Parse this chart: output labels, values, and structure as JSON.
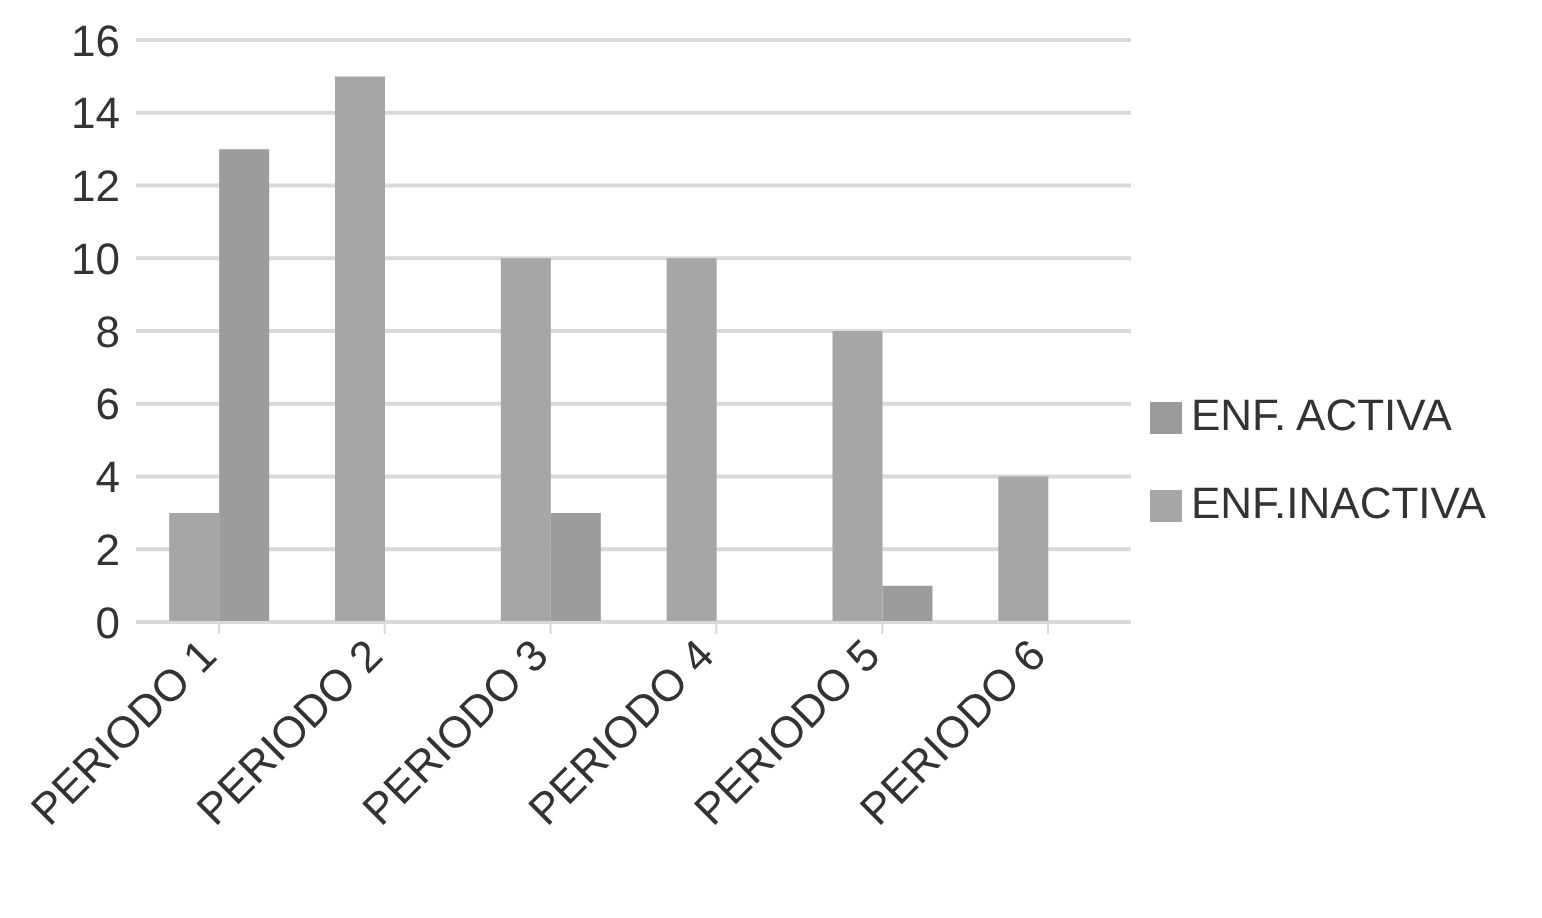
{
  "chart_data": {
    "type": "bar",
    "categories": [
      "PERIODO 1",
      "PERIODO 2",
      "PERIODO 3",
      "PERIODO 4",
      "PERIODO 5",
      "PERIODO 6"
    ],
    "series": [
      {
        "name": "ENF.INACTIVA",
        "color": "#a6a6a6",
        "values": [
          3,
          15,
          10,
          10,
          8,
          4
        ]
      },
      {
        "name": "ENF. ACTIVA",
        "color": "#9c9c9c",
        "values": [
          13,
          0,
          3,
          0,
          1,
          0
        ]
      }
    ],
    "ylim": [
      0,
      16
    ],
    "yticks": [
      0,
      2,
      4,
      6,
      8,
      10,
      12,
      14,
      16
    ],
    "grid": "y",
    "legend": "right"
  }
}
